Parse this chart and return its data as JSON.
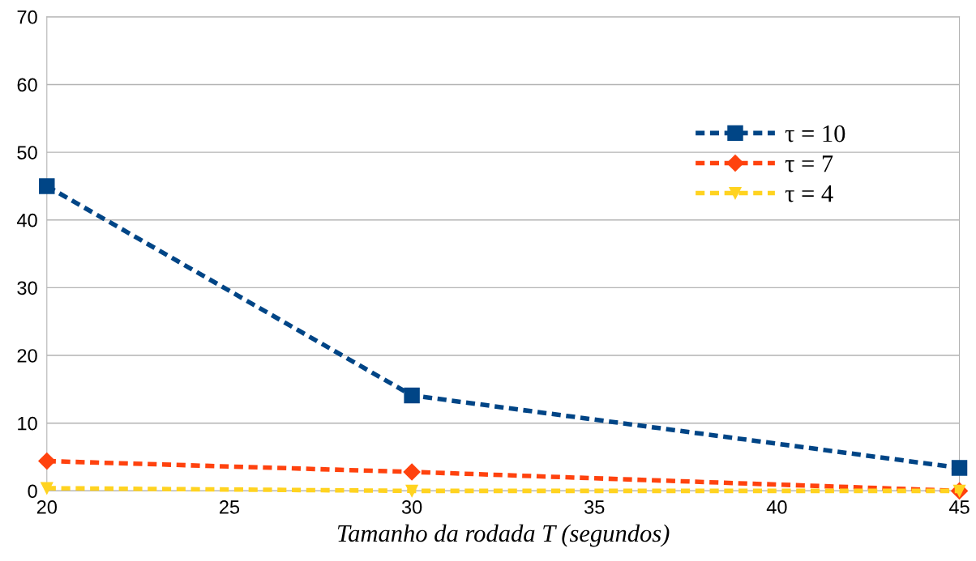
{
  "chart_data": {
    "type": "line",
    "xlabel": "Tamanho da rodada T (segundos)",
    "x": [
      20,
      30,
      45
    ],
    "series": [
      {
        "name": "τ = 10",
        "color": "#004586",
        "marker": "square",
        "values": [
          45,
          14.1,
          3.4
        ]
      },
      {
        "name": "τ = 7",
        "color": "#ff420e",
        "marker": "diamond",
        "values": [
          4.4,
          2.8,
          0
        ]
      },
      {
        "name": "τ = 4",
        "color": "#ffd320",
        "marker": "triangle",
        "values": [
          0.4,
          0,
          0
        ]
      }
    ],
    "line_style": "dashed",
    "xlim": [
      20,
      45
    ],
    "xticks": [
      20,
      25,
      30,
      35,
      40,
      45
    ],
    "ylim": [
      0,
      70
    ],
    "yticks": [
      0,
      10,
      20,
      30,
      40,
      50,
      60,
      70
    ],
    "grid": "y",
    "legend": "top right"
  }
}
